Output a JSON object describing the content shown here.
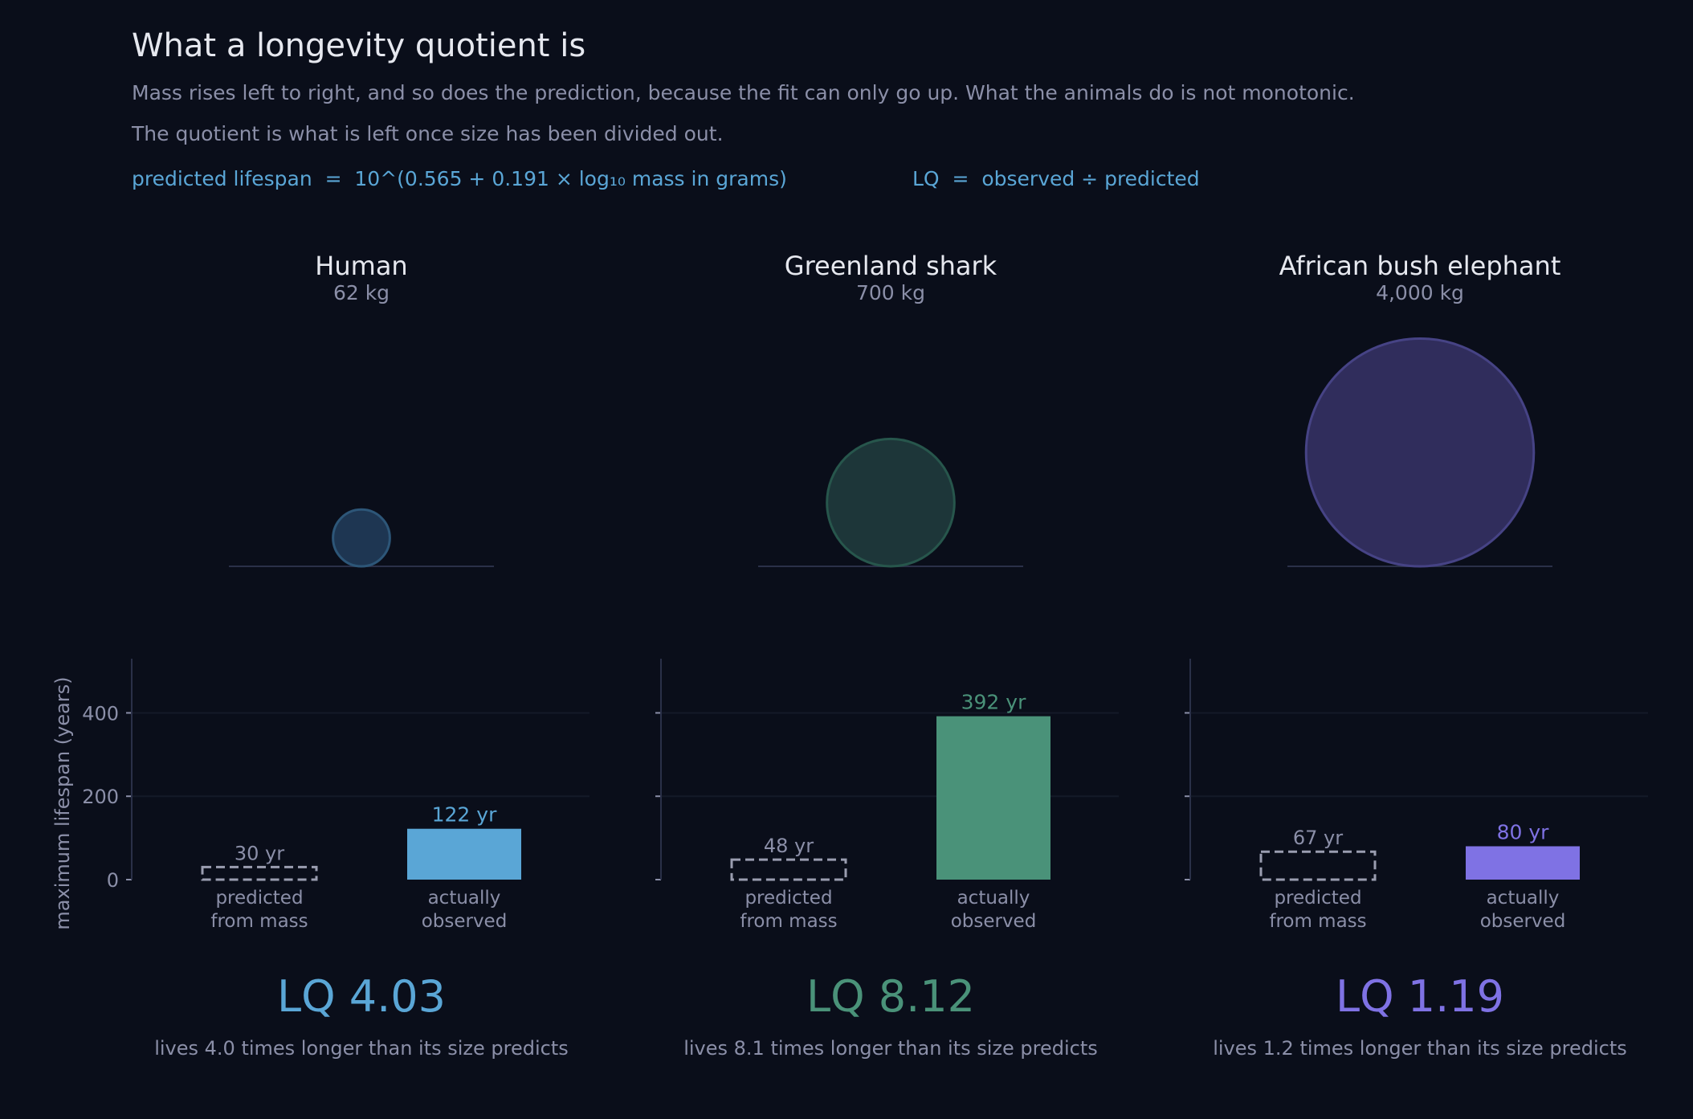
{
  "title": "What a longevity quotient is",
  "subtitle_lines": [
    "Mass rises left to right, and so does the prediction, because the fit can only go up. What the animals do is not monotonic.",
    "The quotient is what is left once size has been divided out."
  ],
  "formula": {
    "prediction": "predicted lifespan  =  10^(0.565 + 0.191 × log₁₀ mass in grams)",
    "quotient": "LQ  =  observed ÷ predicted"
  },
  "colors": {
    "background": "#0a0e1a",
    "title": "#e6e8ef",
    "muted": "#8b8fa8",
    "formula": "#5aa6d6",
    "grid": "#141a28",
    "axis": "#2a3048",
    "predicted_outline": "#9a9db0"
  },
  "chart_data": {
    "type": "bar",
    "ylabel": "maximum lifespan (years)",
    "ylim": [
      0,
      530
    ],
    "yticks": [
      0,
      200,
      400
    ],
    "grid": true,
    "categories": [
      "predicted\nfrom mass",
      "actually\nobserved"
    ],
    "category_lines": [
      [
        "predicted",
        "from mass"
      ],
      [
        "actually",
        "observed"
      ]
    ],
    "value_suffix": " yr",
    "panels": [
      {
        "name": "Human",
        "mass_label": "62 kg",
        "mass_kg": 62,
        "predicted": 30,
        "observed": 122,
        "predicted_label": "30 yr",
        "observed_label": "122 yr",
        "lq": 4.03,
        "lq_label": "LQ 4.03",
        "caption": "lives 4.0 times longer than its size predicts",
        "color": "#5aa6d6",
        "circle_fill": "#1e3652",
        "circle_stroke": "#2d5678"
      },
      {
        "name": "Greenland shark",
        "mass_label": "700 kg",
        "mass_kg": 700,
        "predicted": 48,
        "observed": 392,
        "predicted_label": "48 yr",
        "observed_label": "392 yr",
        "lq": 8.12,
        "lq_label": "LQ 8.12",
        "caption": "lives 8.1 times longer than its size predicts",
        "color": "#4a9279",
        "circle_fill": "#1d3639",
        "circle_stroke": "#27564c"
      },
      {
        "name": "African bush elephant",
        "mass_label": "4,000 kg",
        "mass_kg": 4000,
        "predicted": 67,
        "observed": 80,
        "predicted_label": "67 yr",
        "observed_label": "80 yr",
        "lq": 1.19,
        "lq_label": "LQ 1.19",
        "caption": "lives 1.2 times longer than its size predicts",
        "color": "#7f72e4",
        "circle_fill": "#302d5c",
        "circle_stroke": "#464385"
      }
    ]
  }
}
